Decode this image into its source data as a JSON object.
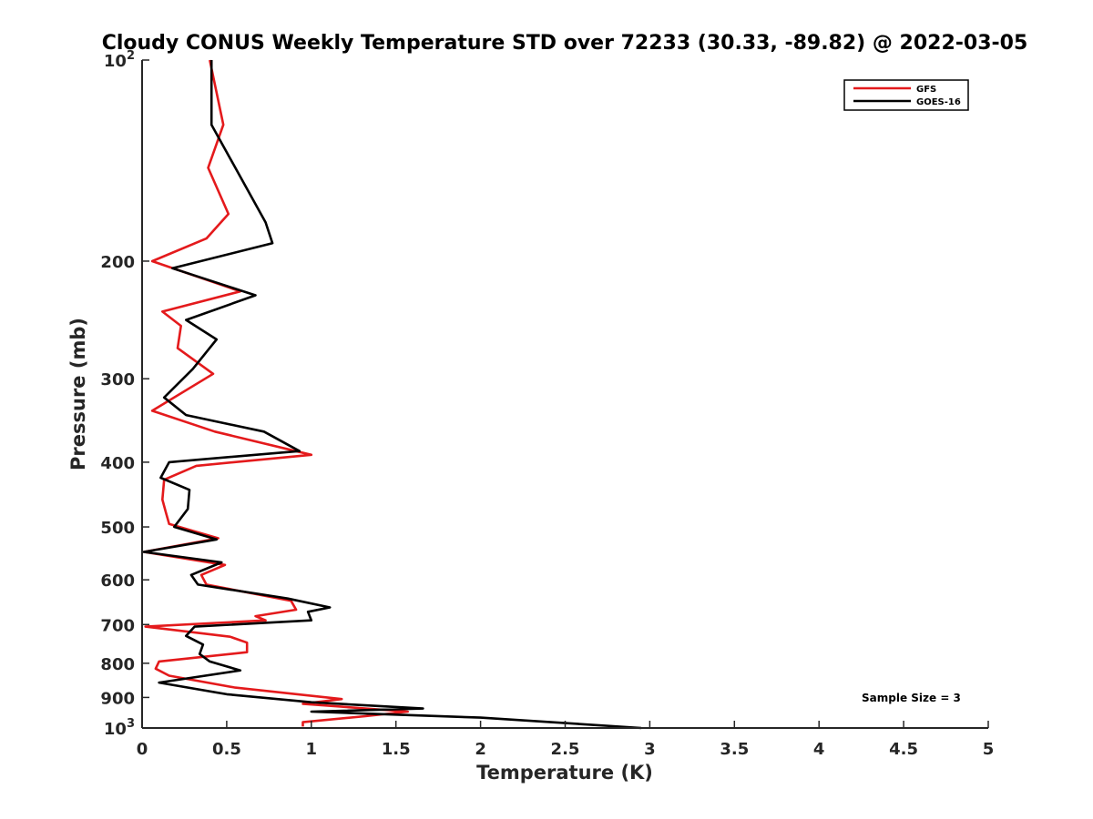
{
  "chart_data": {
    "type": "line",
    "title": "Cloudy CONUS Weekly Temperature STD over 72233 (30.33, -89.82) @ 2022-03-05",
    "xlabel": "Temperature (K)",
    "ylabel": "Pressure (mb)",
    "xlim": [
      0,
      5
    ],
    "ylim": [
      1000,
      100
    ],
    "y_scale": "log",
    "y_reversed": true,
    "grid": false,
    "legend_position": "top-right",
    "x_ticks": [
      "0",
      "0.5",
      "1",
      "1.5",
      "2",
      "2.5",
      "3",
      "3.5",
      "4",
      "4.5",
      "5"
    ],
    "x_tick_values": [
      0,
      0.5,
      1,
      1.5,
      2,
      2.5,
      3,
      3.5,
      4,
      4.5,
      5
    ],
    "y_ticks": [
      {
        "value": 100,
        "label": "10",
        "sup": "2"
      },
      {
        "value": 200,
        "label": "200",
        "sup": ""
      },
      {
        "value": 300,
        "label": "300",
        "sup": ""
      },
      {
        "value": 400,
        "label": "400",
        "sup": ""
      },
      {
        "value": 500,
        "label": "500",
        "sup": ""
      },
      {
        "value": 600,
        "label": "600",
        "sup": ""
      },
      {
        "value": 700,
        "label": "700",
        "sup": ""
      },
      {
        "value": 800,
        "label": "800",
        "sup": ""
      },
      {
        "value": 900,
        "label": "900",
        "sup": ""
      },
      {
        "value": 1000,
        "label": "10",
        "sup": "3"
      }
    ],
    "annotation": "Sample Size = 3",
    "series": [
      {
        "name": "GFS",
        "color": "#e41a1c",
        "points": [
          [
            0.4,
            100
          ],
          [
            0.48,
            125
          ],
          [
            0.39,
            145
          ],
          [
            0.51,
            170
          ],
          [
            0.38,
            185
          ],
          [
            0.06,
            200
          ],
          [
            0.58,
            222
          ],
          [
            0.12,
            238
          ],
          [
            0.23,
            250
          ],
          [
            0.21,
            270
          ],
          [
            0.42,
            295
          ],
          [
            0.06,
            335
          ],
          [
            0.43,
            360
          ],
          [
            1.0,
            390
          ],
          [
            0.32,
            405
          ],
          [
            0.13,
            425
          ],
          [
            0.12,
            455
          ],
          [
            0.14,
            475
          ],
          [
            0.16,
            495
          ],
          [
            0.45,
            520
          ],
          [
            0.01,
            545
          ],
          [
            0.49,
            570
          ],
          [
            0.35,
            590
          ],
          [
            0.38,
            610
          ],
          [
            0.88,
            645
          ],
          [
            0.91,
            665
          ],
          [
            0.67,
            680
          ],
          [
            0.73,
            690
          ],
          [
            0.02,
            705
          ],
          [
            0.52,
            730
          ],
          [
            0.62,
            745
          ],
          [
            0.62,
            770
          ],
          [
            0.1,
            795
          ],
          [
            0.08,
            815
          ],
          [
            0.16,
            835
          ],
          [
            0.55,
            870
          ],
          [
            1.18,
            905
          ],
          [
            0.95,
            920
          ],
          [
            1.57,
            945
          ],
          [
            1.32,
            960
          ],
          [
            0.95,
            980
          ],
          [
            0.95,
            995
          ]
        ]
      },
      {
        "name": "GOES-16",
        "color": "#000000",
        "points": [
          [
            0.41,
            100
          ],
          [
            0.41,
            125
          ],
          [
            0.73,
            175
          ],
          [
            0.77,
            188
          ],
          [
            0.18,
            205
          ],
          [
            0.67,
            225
          ],
          [
            0.26,
            245
          ],
          [
            0.44,
            262
          ],
          [
            0.3,
            290
          ],
          [
            0.13,
            320
          ],
          [
            0.26,
            340
          ],
          [
            0.72,
            360
          ],
          [
            0.93,
            385
          ],
          [
            0.16,
            400
          ],
          [
            0.11,
            422
          ],
          [
            0.28,
            440
          ],
          [
            0.27,
            470
          ],
          [
            0.19,
            500
          ],
          [
            0.44,
            522
          ],
          [
            0.01,
            545
          ],
          [
            0.47,
            565
          ],
          [
            0.29,
            590
          ],
          [
            0.33,
            610
          ],
          [
            0.86,
            640
          ],
          [
            1.11,
            660
          ],
          [
            0.98,
            670
          ],
          [
            1.0,
            690
          ],
          [
            0.31,
            705
          ],
          [
            0.26,
            728
          ],
          [
            0.36,
            750
          ],
          [
            0.34,
            775
          ],
          [
            0.4,
            795
          ],
          [
            0.58,
            820
          ],
          [
            0.1,
            855
          ],
          [
            0.5,
            890
          ],
          [
            1.0,
            915
          ],
          [
            1.66,
            935
          ],
          [
            1.0,
            945
          ],
          [
            2.0,
            965
          ],
          [
            2.95,
            1000
          ]
        ]
      }
    ]
  }
}
